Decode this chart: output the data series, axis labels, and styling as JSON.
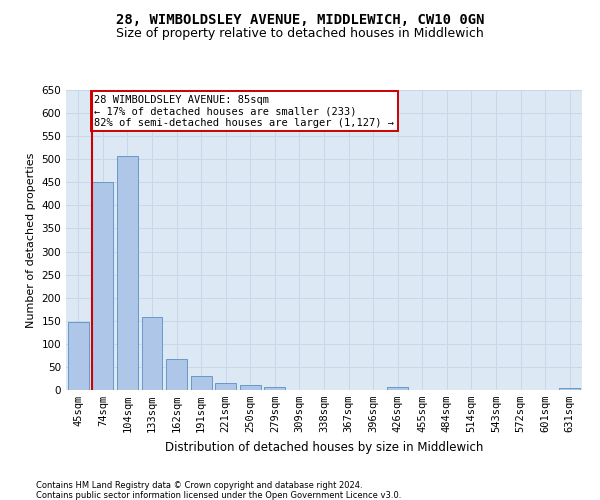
{
  "title": "28, WIMBOLDSLEY AVENUE, MIDDLEWICH, CW10 0GN",
  "subtitle": "Size of property relative to detached houses in Middlewich",
  "xlabel": "Distribution of detached houses by size in Middlewich",
  "ylabel": "Number of detached properties",
  "categories": [
    "45sqm",
    "74sqm",
    "104sqm",
    "133sqm",
    "162sqm",
    "191sqm",
    "221sqm",
    "250sqm",
    "279sqm",
    "309sqm",
    "338sqm",
    "367sqm",
    "396sqm",
    "426sqm",
    "455sqm",
    "484sqm",
    "514sqm",
    "543sqm",
    "572sqm",
    "601sqm",
    "631sqm"
  ],
  "values": [
    147,
    450,
    507,
    158,
    67,
    30,
    15,
    10,
    7,
    0,
    0,
    0,
    0,
    6,
    0,
    0,
    0,
    0,
    0,
    0,
    5
  ],
  "bar_color": "#aec6e8",
  "bar_edge_color": "#5a8fc0",
  "redline_index": 1,
  "annotation_line1": "28 WIMBOLDSLEY AVENUE: 85sqm",
  "annotation_line2": "← 17% of detached houses are smaller (233)",
  "annotation_line3": "82% of semi-detached houses are larger (1,127) →",
  "annotation_box_color": "#ffffff",
  "annotation_box_edge": "#cc0000",
  "redline_color": "#cc0000",
  "grid_color": "#c8d8e8",
  "background_color": "#dce9f5",
  "ylim": [
    0,
    650
  ],
  "yticks": [
    0,
    50,
    100,
    150,
    200,
    250,
    300,
    350,
    400,
    450,
    500,
    550,
    600,
    650
  ],
  "footer1": "Contains HM Land Registry data © Crown copyright and database right 2024.",
  "footer2": "Contains public sector information licensed under the Open Government Licence v3.0.",
  "title_fontsize": 10,
  "subtitle_fontsize": 9,
  "tick_fontsize": 7.5,
  "ylabel_fontsize": 8,
  "xlabel_fontsize": 8.5,
  "annotation_fontsize": 7.5,
  "footer_fontsize": 6
}
